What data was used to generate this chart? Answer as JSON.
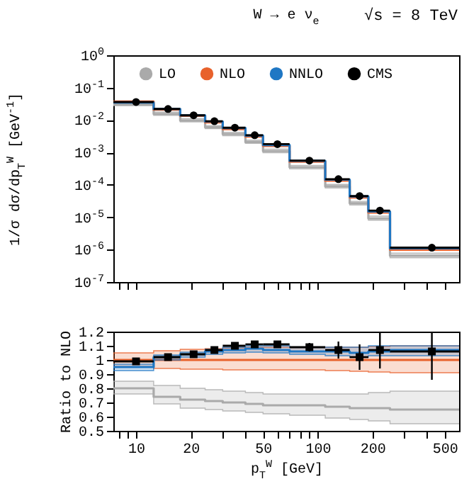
{
  "chart_data": [
    {
      "type": "step",
      "title": "W → e ν$_{e}$",
      "annotations": [
        "√s = 8 TeV"
      ],
      "ylabel": "1/σ dσ/dp$_{T}$$^{W}$ [GeV$^{-1}$]",
      "log": "xy",
      "xlim": [
        7.5,
        600
      ],
      "ylim": [
        1e-07,
        1
      ],
      "xticks": [
        {
          "value": 8,
          "label": null
        },
        {
          "value": 9,
          "label": null
        },
        10,
        20,
        {
          "value": 30,
          "label": null
        },
        {
          "value": 40,
          "label": null
        },
        50,
        {
          "value": 60,
          "label": null
        },
        {
          "value": 70,
          "label": null
        },
        {
          "value": 80,
          "label": null
        },
        {
          "value": 90,
          "label": null
        },
        100,
        200,
        {
          "value": 300,
          "label": null
        },
        {
          "value": 400,
          "label": null
        },
        500
      ],
      "yticks": [
        {
          "value": 1,
          "label": "10$^{0}$"
        },
        {
          "value": 0.1,
          "label": "10$^{-1}$"
        },
        {
          "value": 0.01,
          "label": "10$^{-2}$"
        },
        {
          "value": 0.001,
          "label": "10$^{-3}$"
        },
        {
          "value": 0.0001,
          "label": "10$^{-4}$"
        },
        {
          "value": 1e-05,
          "label": "10$^{-5}$"
        },
        {
          "value": 1e-06,
          "label": "10$^{-6}$"
        },
        {
          "value": 1e-07,
          "label": "10$^{-7}$"
        }
      ],
      "tick_labels": "y",
      "legend": "top",
      "grid": false,
      "series": [
        {
          "name": "LO",
          "type": "step",
          "color": "#aaaaaa",
          "x": [
            7.5,
            12.5,
            17.5,
            24,
            30,
            40,
            50,
            70,
            110,
            150,
            190,
            250
          ],
          "values": [
            0.03,
            0.0155,
            0.0097,
            0.006,
            0.0037,
            0.0021,
            0.0011,
            0.00035,
            9e-05,
            2.7e-05,
            9.2e-06,
            6.5e-07
          ],
          "lower": [
            0.028,
            0.014,
            0.0088,
            0.0054,
            0.0033,
            0.0019,
            0.00098,
            0.00031,
            8e-05,
            2.4e-05,
            8.1e-06,
            5.6e-07
          ],
          "upper": [
            0.033,
            0.0175,
            0.011,
            0.0068,
            0.0042,
            0.0024,
            0.00126,
            0.0004,
            0.000103,
            3.1e-05,
            1.08e-05,
            7.8e-07
          ]
        },
        {
          "name": "NLO",
          "type": "step",
          "color": "#e8622c",
          "x": [
            7.5,
            12.5,
            17.5,
            24,
            30,
            40,
            50,
            70,
            110,
            150,
            190,
            250
          ],
          "values": [
            0.037,
            0.021,
            0.0135,
            0.0085,
            0.0053,
            0.0031,
            0.0016,
            0.00052,
            0.000135,
            4.1e-05,
            1.4e-05,
            1e-06
          ]
        },
        {
          "name": "NNLO",
          "type": "step",
          "color": "#1f77c4",
          "x": [
            7.5,
            12.5,
            17.5,
            24,
            30,
            40,
            50,
            70,
            110,
            150,
            190,
            250
          ],
          "values": [
            0.035,
            0.022,
            0.014,
            0.009,
            0.0057,
            0.0033,
            0.0017,
            0.00055,
            0.000145,
            4.4e-05,
            1.5e-05,
            1.1e-06
          ]
        },
        {
          "name": "CMS",
          "type": "scatter",
          "marker": "circle",
          "color": "#000000",
          "x": [
            10,
            15,
            20.75,
            27,
            35,
            45,
            60,
            90,
            130,
            170,
            220,
            425
          ],
          "values": [
            0.036,
            0.022,
            0.014,
            0.0092,
            0.0058,
            0.0034,
            0.0018,
            0.00056,
            0.00015,
            4.5e-05,
            1.6e-05,
            1.15e-06
          ],
          "xerrors": [
            2.5,
            2.5,
            3.25,
            3,
            5,
            5,
            10,
            20,
            20,
            20,
            30,
            175
          ]
        }
      ]
    },
    {
      "type": "step",
      "xlabel": "p$_{T}$$^{W}$ [GeV]",
      "ylabel": "Ratio to NLO",
      "log": "x",
      "xlim": [
        7.5,
        600
      ],
      "ylim": [
        0.5,
        1.2
      ],
      "xticks": [
        {
          "value": 8,
          "label": null
        },
        {
          "value": 9,
          "label": null
        },
        10,
        20,
        {
          "value": 30,
          "label": null
        },
        {
          "value": 40,
          "label": null
        },
        50,
        {
          "value": 60,
          "label": null
        },
        {
          "value": 70,
          "label": null
        },
        {
          "value": 80,
          "label": null
        },
        {
          "value": 90,
          "label": null
        },
        100,
        200,
        {
          "value": 300,
          "label": null
        },
        {
          "value": 400,
          "label": null
        },
        500
      ],
      "yticks": [
        0.5,
        0.6,
        0.7,
        0.8,
        0.9,
        1,
        1.1,
        1.2
      ],
      "grid": false,
      "series": [
        {
          "type": "step",
          "color": "#aaaaaa",
          "x": [
            7.5,
            12.5,
            17.5,
            24,
            30,
            40,
            50,
            70,
            110,
            150,
            190,
            250
          ],
          "values": [
            0.8,
            0.74,
            0.72,
            0.71,
            0.7,
            0.69,
            0.68,
            0.68,
            0.67,
            0.66,
            0.66,
            0.65
          ],
          "lower": [
            0.76,
            0.69,
            0.66,
            0.65,
            0.64,
            0.63,
            0.62,
            0.61,
            0.59,
            0.58,
            0.57,
            0.55
          ],
          "upper": [
            0.85,
            0.82,
            0.8,
            0.79,
            0.78,
            0.77,
            0.76,
            0.76,
            0.76,
            0.76,
            0.77,
            0.78
          ]
        },
        {
          "type": "step",
          "color": "#e8622c",
          "x": [
            7.5,
            12.5,
            17.5,
            24,
            30,
            40,
            50,
            70,
            110,
            150,
            190,
            250
          ],
          "values": [
            1,
            1,
            1,
            1,
            1,
            1,
            1,
            1,
            1,
            1,
            1,
            1
          ],
          "lower": [
            0.95,
            0.94,
            0.935,
            0.935,
            0.93,
            0.93,
            0.93,
            0.93,
            0.925,
            0.92,
            0.915,
            0.91
          ],
          "upper": [
            1.05,
            1.065,
            1.075,
            1.08,
            1.085,
            1.09,
            1.09,
            1.09,
            1.09,
            1.09,
            1.095,
            1.1
          ]
        },
        {
          "type": "step",
          "color": "#1f77c4",
          "x": [
            7.5,
            12.5,
            17.5,
            24,
            30,
            40,
            50,
            70,
            110,
            150,
            190,
            250
          ],
          "values": [
            0.95,
            1.02,
            1.04,
            1.06,
            1.07,
            1.08,
            1.07,
            1.06,
            1.06,
            1.05,
            1.06,
            1.07
          ],
          "lower": [
            0.925,
            1,
            1.02,
            1.04,
            1.05,
            1.055,
            1.05,
            1.04,
            1.03,
            1.02,
            1.03,
            1.03
          ],
          "upper": [
            0.97,
            1.035,
            1.055,
            1.075,
            1.09,
            1.1,
            1.1,
            1.09,
            1.09,
            1.09,
            1.1,
            1.1
          ]
        },
        {
          "type": "scatter",
          "marker": "square",
          "color": "#000000",
          "x": [
            10,
            15,
            20.75,
            27,
            35,
            45,
            60,
            90,
            130,
            170,
            220,
            425
          ],
          "values": [
            0.99,
            1.02,
            1.04,
            1.07,
            1.1,
            1.11,
            1.11,
            1.09,
            1.07,
            1.02,
            1.07,
            1.06
          ],
          "errors": [
            0.01,
            0.01,
            0.01,
            0.015,
            0.015,
            0.02,
            0.02,
            0.03,
            0.06,
            0.09,
            0.13,
            [
              0.86,
              1.2
            ]
          ],
          "xerrors": [
            2.5,
            2.5,
            3.25,
            3,
            5,
            5,
            10,
            20,
            20,
            20,
            30,
            175
          ]
        }
      ]
    }
  ]
}
